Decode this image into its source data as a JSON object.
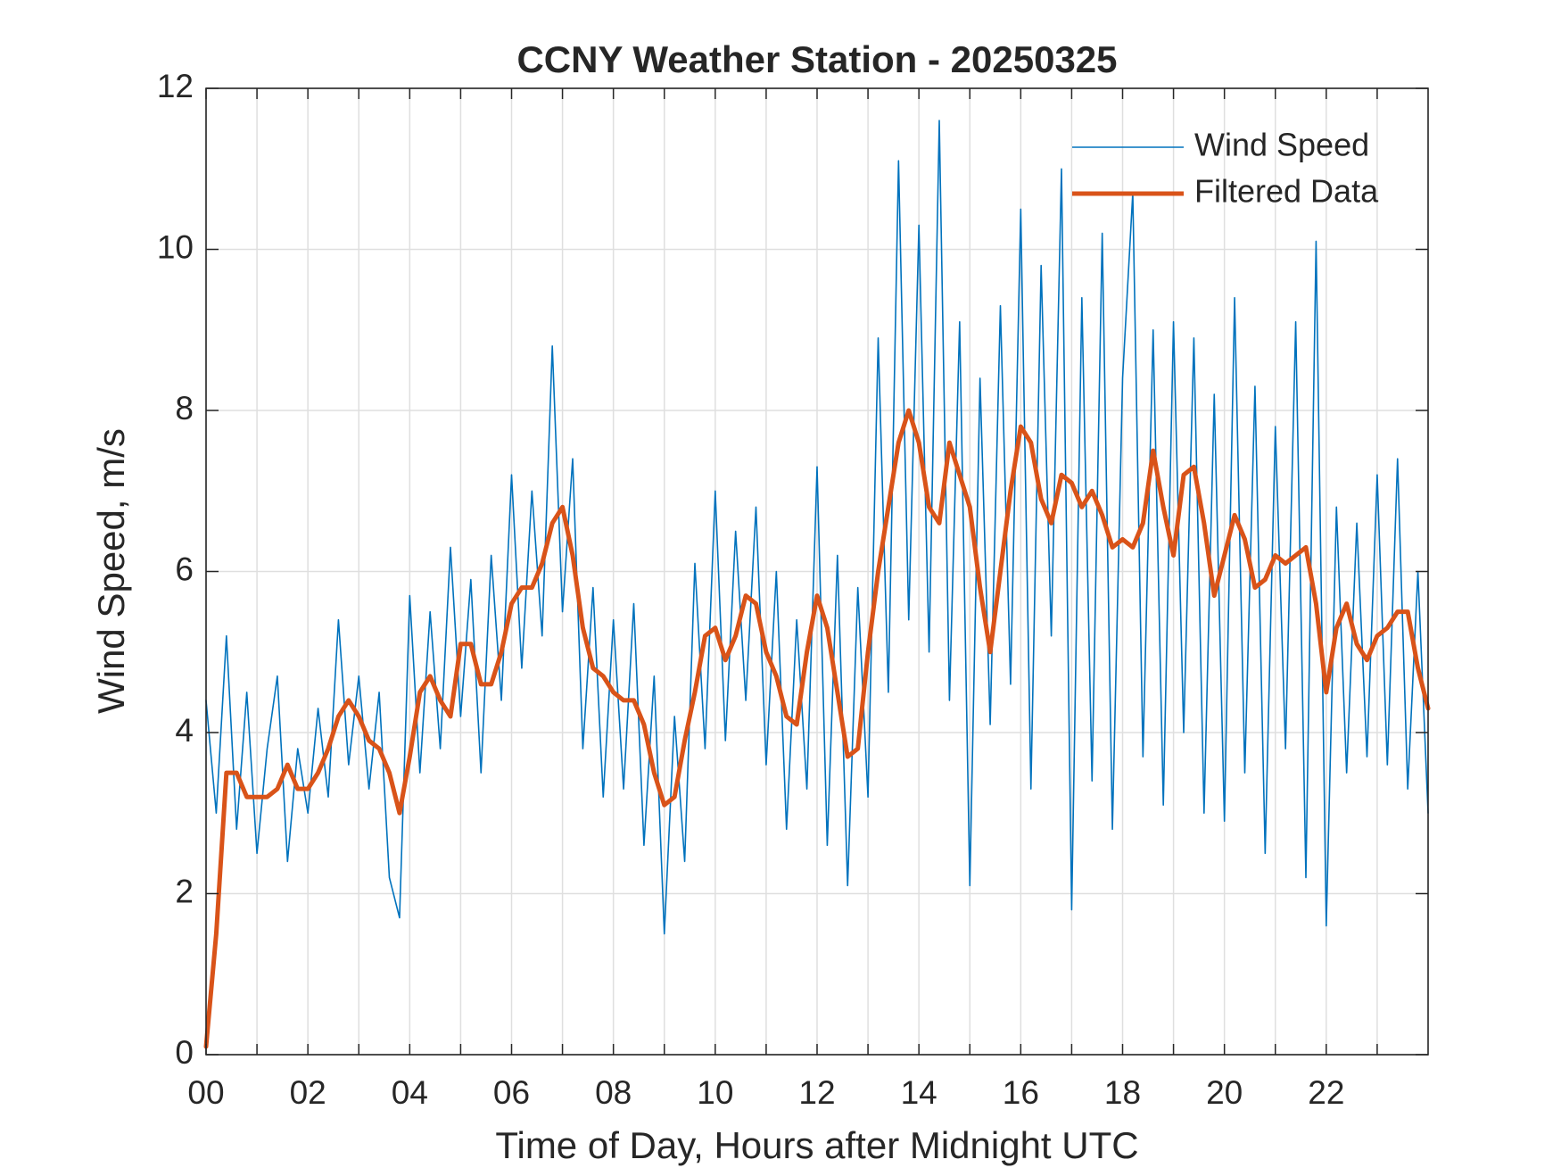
{
  "chart_data": {
    "type": "line",
    "title": "CCNY Weather Station - 20250325",
    "x_label": "Time of Day, Hours after Midnight UTC",
    "y_label": "Wind Speed, m/s",
    "xlim": [
      0,
      24
    ],
    "ylim": [
      0,
      12
    ],
    "xticks": [
      {
        "value": 0,
        "label": "00"
      },
      {
        "value": 2,
        "label": "02"
      },
      {
        "value": 4,
        "label": "04"
      },
      {
        "value": 6,
        "label": "06"
      },
      {
        "value": 8,
        "label": "08"
      },
      {
        "value": 10,
        "label": "10"
      },
      {
        "value": 12,
        "label": "12"
      },
      {
        "value": 14,
        "label": "14"
      },
      {
        "value": 16,
        "label": "16"
      },
      {
        "value": 18,
        "label": "18"
      },
      {
        "value": 20,
        "label": "20"
      },
      {
        "value": 22,
        "label": "22"
      }
    ],
    "xminorticks": [
      1,
      3,
      5,
      7,
      9,
      11,
      13,
      15,
      17,
      19,
      21,
      23
    ],
    "yticks": [
      0,
      2,
      4,
      6,
      8,
      10,
      12
    ],
    "grid": true,
    "legend_position": "top-right",
    "x": [
      0,
      0.2,
      0.4,
      0.6,
      0.8,
      1,
      1.2,
      1.4,
      1.6,
      1.8,
      2,
      2.2,
      2.4,
      2.6,
      2.8,
      3,
      3.2,
      3.4,
      3.6,
      3.8,
      4,
      4.2,
      4.4,
      4.6,
      4.8,
      5,
      5.2,
      5.4,
      5.6,
      5.8,
      6,
      6.2,
      6.4,
      6.6,
      6.8,
      7,
      7.2,
      7.4,
      7.6,
      7.8,
      8,
      8.2,
      8.4,
      8.6,
      8.8,
      9,
      9.2,
      9.4,
      9.6,
      9.8,
      10,
      10.2,
      10.4,
      10.6,
      10.8,
      11,
      11.2,
      11.4,
      11.6,
      11.8,
      12,
      12.2,
      12.4,
      12.6,
      12.8,
      13,
      13.2,
      13.4,
      13.6,
      13.8,
      14,
      14.2,
      14.4,
      14.6,
      14.8,
      15,
      15.2,
      15.4,
      15.6,
      15.8,
      16,
      16.2,
      16.4,
      16.6,
      16.8,
      17,
      17.2,
      17.4,
      17.6,
      17.8,
      18,
      18.2,
      18.4,
      18.6,
      18.8,
      19,
      19.2,
      19.4,
      19.6,
      19.8,
      20,
      20.2,
      20.4,
      20.6,
      20.8,
      21,
      21.2,
      21.4,
      21.6,
      21.8,
      22,
      22.2,
      22.4,
      22.6,
      22.8,
      23,
      23.2,
      23.4,
      23.6,
      23.8,
      24
    ],
    "series": [
      {
        "name": "Wind Speed",
        "color": "#0072bd",
        "width": 1.6,
        "values": [
          4.4,
          3.0,
          5.2,
          2.8,
          4.5,
          2.5,
          3.8,
          4.7,
          2.4,
          3.8,
          3.0,
          4.3,
          3.2,
          5.4,
          3.6,
          4.7,
          3.3,
          4.5,
          2.2,
          1.7,
          5.7,
          3.5,
          5.5,
          3.8,
          6.3,
          4.2,
          5.9,
          3.5,
          6.2,
          4.4,
          7.2,
          4.8,
          7.0,
          5.2,
          8.8,
          5.5,
          7.4,
          3.8,
          5.8,
          3.2,
          5.4,
          3.3,
          5.6,
          2.6,
          4.7,
          1.5,
          4.2,
          2.4,
          6.1,
          3.8,
          7.0,
          3.9,
          6.5,
          4.4,
          6.8,
          3.6,
          6.0,
          2.8,
          5.4,
          3.3,
          7.3,
          2.6,
          6.2,
          2.1,
          5.8,
          3.2,
          8.9,
          4.5,
          11.1,
          5.4,
          10.3,
          5.0,
          11.6,
          4.4,
          9.1,
          2.1,
          8.4,
          4.1,
          9.3,
          4.6,
          10.5,
          3.3,
          9.8,
          5.2,
          11.0,
          1.8,
          9.4,
          3.4,
          10.2,
          2.8,
          8.4,
          10.7,
          3.7,
          9.0,
          3.1,
          9.1,
          4.0,
          8.9,
          3.0,
          8.2,
          2.9,
          9.4,
          3.5,
          8.3,
          2.5,
          7.8,
          3.8,
          9.1,
          2.2,
          10.1,
          1.6,
          6.8,
          3.5,
          6.6,
          3.7,
          7.2,
          3.6,
          7.4,
          3.3,
          6.0,
          3.0
        ]
      },
      {
        "name": "Filtered Data",
        "color": "#d95319",
        "width": 5,
        "values": [
          0.1,
          1.5,
          3.5,
          3.5,
          3.2,
          3.2,
          3.2,
          3.3,
          3.6,
          3.3,
          3.3,
          3.5,
          3.8,
          4.2,
          4.4,
          4.2,
          3.9,
          3.8,
          3.5,
          3.0,
          3.7,
          4.5,
          4.7,
          4.4,
          4.2,
          5.1,
          5.1,
          4.6,
          4.6,
          5.0,
          5.6,
          5.8,
          5.8,
          6.1,
          6.6,
          6.8,
          6.2,
          5.3,
          4.8,
          4.7,
          4.5,
          4.4,
          4.4,
          4.1,
          3.5,
          3.1,
          3.2,
          3.9,
          4.5,
          5.2,
          5.3,
          4.9,
          5.2,
          5.7,
          5.6,
          5.0,
          4.7,
          4.2,
          4.1,
          5.0,
          5.7,
          5.3,
          4.5,
          3.7,
          3.8,
          5.0,
          6.0,
          6.8,
          7.6,
          8.0,
          7.6,
          6.8,
          6.6,
          7.6,
          7.2,
          6.8,
          5.8,
          5.0,
          6.0,
          7.0,
          7.8,
          7.6,
          6.9,
          6.6,
          7.2,
          7.1,
          6.8,
          7.0,
          6.7,
          6.3,
          6.4,
          6.3,
          6.6,
          7.5,
          6.8,
          6.2,
          7.2,
          7.3,
          6.6,
          5.7,
          6.2,
          6.7,
          6.4,
          5.8,
          5.9,
          6.2,
          6.1,
          6.2,
          6.3,
          5.6,
          4.5,
          5.3,
          5.6,
          5.1,
          4.9,
          5.2,
          5.3,
          5.5,
          5.5,
          4.8,
          4.3
        ]
      }
    ]
  }
}
